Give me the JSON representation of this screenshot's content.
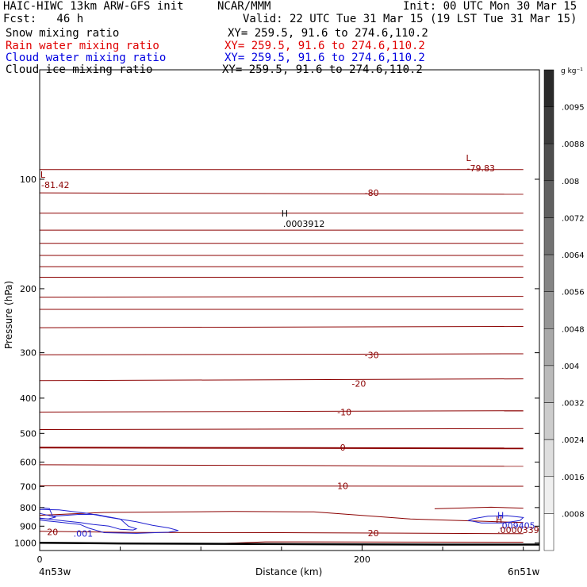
{
  "header": {
    "model": "HAIC-HIWC 13km ARW-GFS init",
    "org": "NCAR/MMM",
    "init": "Init: 00 UTC Mon 30 Mar 15",
    "fcst": "Fcst:   46 h",
    "valid": "Valid: 22 UTC Tue 31 Mar 15 (19 LST Tue 31 Mar 15)"
  },
  "fields": [
    {
      "name": "Snow mixing ratio",
      "xy": "",
      "color": "#000000"
    },
    {
      "name": "Rain water mixing ratio",
      "xy": "XY= 259.5, 91.6 to 274.6,110.2",
      "color": "#e00000"
    },
    {
      "name": "Cloud water mixing ratio",
      "xy": "XY= 259.5, 91.6 to 274.6,110.2",
      "color": "#0000e0"
    },
    {
      "name": "Cloud ice mixing ratio",
      "xy": "XY= 259.5, 91.6 to 274.6,110.2",
      "color": "#000000"
    }
  ],
  "snow_xy": "XY= 259.5, 91.6 to 274.6,110.2",
  "colorbar": {
    "unit": "g kg⁻¹",
    "labels": [
      ".0095",
      ".0088",
      ".008",
      ".0072",
      ".0064",
      ".0056",
      ".0048",
      ".004",
      ".0032",
      ".0024",
      ".0016",
      ".0008"
    ],
    "shades": [
      "#2a2a2a",
      "#3c3c3c",
      "#4e4e4e",
      "#606060",
      "#727272",
      "#848484",
      "#969696",
      "#a8a8a8",
      "#bababa",
      "#cccccc",
      "#dedede",
      "#efefef",
      "#ffffff"
    ]
  },
  "chart_data": {
    "type": "line",
    "xlabel": "Distance (km)",
    "ylabel": "Pressure (hPa)",
    "xlim": [
      0,
      310
    ],
    "ylim": [
      1050,
      50
    ],
    "yscale": "log",
    "x_ticks": [
      0,
      200
    ],
    "y_ticks": [
      100,
      200,
      300,
      400,
      500,
      600,
      700,
      800,
      900,
      1000
    ],
    "x_endpoints": {
      "left": "4n53w",
      "right": "6n51w"
    },
    "temperature_contour_color": "#8b0000",
    "cloud_water_contour_color": "#2020d0",
    "ground_color": "#000000",
    "contour_labels": [
      {
        "text": "-80",
        "x": 206,
        "p": 109,
        "color": "#8b0000"
      },
      {
        "text": "-30",
        "x": 206,
        "p": 304,
        "color": "#8b0000"
      },
      {
        "text": "-20",
        "x": 198,
        "p": 365,
        "color": "#8b0000"
      },
      {
        "text": "-10",
        "x": 189,
        "p": 437,
        "color": "#8b0000"
      },
      {
        "text": "0",
        "x": 188,
        "p": 547,
        "color": "#8b0000"
      },
      {
        "text": "10",
        "x": 188,
        "p": 697,
        "color": "#8b0000"
      },
      {
        "text": "20",
        "x": 207,
        "p": 940,
        "color": "#8b0000"
      },
      {
        "text": "20",
        "x": 8,
        "p": 933,
        "color": "#8b0000"
      },
      {
        "text": ".001",
        "x": 27,
        "p": 942,
        "color": "#2020d0"
      }
    ],
    "extrema": [
      {
        "type": "L",
        "value": "-81.42",
        "x": 0,
        "p": 100,
        "color": "#8b0000"
      },
      {
        "type": "L",
        "value": "-79.83",
        "x": 264,
        "p": 90,
        "color": "#8b0000"
      },
      {
        "type": "H",
        "value": ".0003912",
        "x": 150,
        "p": 128,
        "color": "#000000"
      },
      {
        "type": "H",
        "value": ".009405",
        "x": 284,
        "p": 865,
        "color": "#2020d0"
      },
      {
        "type": "H",
        "value": ".0000339",
        "x": 283,
        "p": 890,
        "color": "#8b0000"
      }
    ],
    "temperature_isotherms": [
      {
        "x": [
          0,
          300
        ],
        "p": [
          94,
          94
        ]
      },
      {
        "x": [
          0,
          300
        ],
        "p": [
          109,
          110
        ]
      },
      {
        "x": [
          0,
          300
        ],
        "p": [
          124,
          124
        ]
      },
      {
        "x": [
          0,
          300
        ],
        "p": [
          138,
          138
        ]
      },
      {
        "x": [
          0,
          300
        ],
        "p": [
          150,
          150
        ]
      },
      {
        "x": [
          0,
          300
        ],
        "p": [
          162,
          162
        ]
      },
      {
        "x": [
          0,
          300
        ],
        "p": [
          174,
          174
        ]
      },
      {
        "x": [
          0,
          300
        ],
        "p": [
          186,
          186
        ]
      },
      {
        "x": [
          0,
          300
        ],
        "p": [
          211,
          210
        ]
      },
      {
        "x": [
          0,
          300
        ],
        "p": [
          228,
          228
        ]
      },
      {
        "x": [
          0,
          300
        ],
        "p": [
          256,
          254
        ]
      },
      {
        "x": [
          0,
          300
        ],
        "p": [
          304,
          302
        ]
      },
      {
        "x": [
          0,
          300
        ],
        "p": [
          358,
          354
        ]
      },
      {
        "x": [
          0,
          300
        ],
        "p": [
          437,
          433
        ]
      },
      {
        "x": [
          0,
          300
        ],
        "p": [
          488,
          485
        ]
      },
      {
        "x": [
          0,
          300
        ],
        "p": [
          547,
          550
        ]
      },
      {
        "x": [
          0,
          300
        ],
        "p": [
          610,
          616
        ]
      },
      {
        "x": [
          0,
          300
        ],
        "p": [
          697,
          699
        ]
      },
      {
        "x": [
          0,
          40,
          120,
          170,
          230,
          300
        ],
        "p": [
          840,
          825,
          820,
          822,
          860,
          880
        ]
      },
      {
        "x": [
          245,
          280,
          300
        ],
        "p": [
          806,
          798,
          803
        ]
      },
      {
        "x": [
          0,
          60,
          150,
          300
        ],
        "p": [
          930,
          937,
          938,
          944
        ]
      },
      {
        "x": [
          108,
          140,
          300
        ],
        "p": [
          1006,
          994,
          996
        ]
      }
    ],
    "cloud_water_contours": [
      {
        "x": [
          0,
          6,
          8,
          20,
          25,
          35,
          50,
          55,
          60,
          58,
          50,
          43,
          33,
          25,
          15,
          5,
          0
        ],
        "p": [
          800,
          805,
          845,
          838,
          835,
          836,
          860,
          900,
          915,
          922,
          918,
          900,
          890,
          880,
          870,
          860,
          858
        ]
      },
      {
        "x": [
          0,
          12,
          30,
          42,
          60,
          70,
          80,
          86,
          80,
          60,
          40,
          30,
          25,
          10,
          2,
          0
        ],
        "p": [
          810,
          812,
          830,
          850,
          875,
          895,
          910,
          925,
          935,
          942,
          938,
          910,
          890,
          875,
          868,
          865
        ]
      },
      {
        "x": [
          0,
          10,
          5,
          0
        ],
        "p": [
          830,
          850,
          860,
          855
        ]
      },
      {
        "x": [
          268,
          278,
          290,
          300,
          298,
          288,
          274,
          266,
          268
        ],
        "p": [
          860,
          845,
          842,
          852,
          868,
          882,
          882,
          868,
          860
        ]
      }
    ],
    "ground_surface": {
      "x": [
        0,
        50,
        100,
        150,
        200,
        250,
        300,
        310
      ],
      "p": [
        1000,
        1004,
        1006,
        1008,
        1010,
        1011,
        1011,
        1011
      ]
    }
  }
}
